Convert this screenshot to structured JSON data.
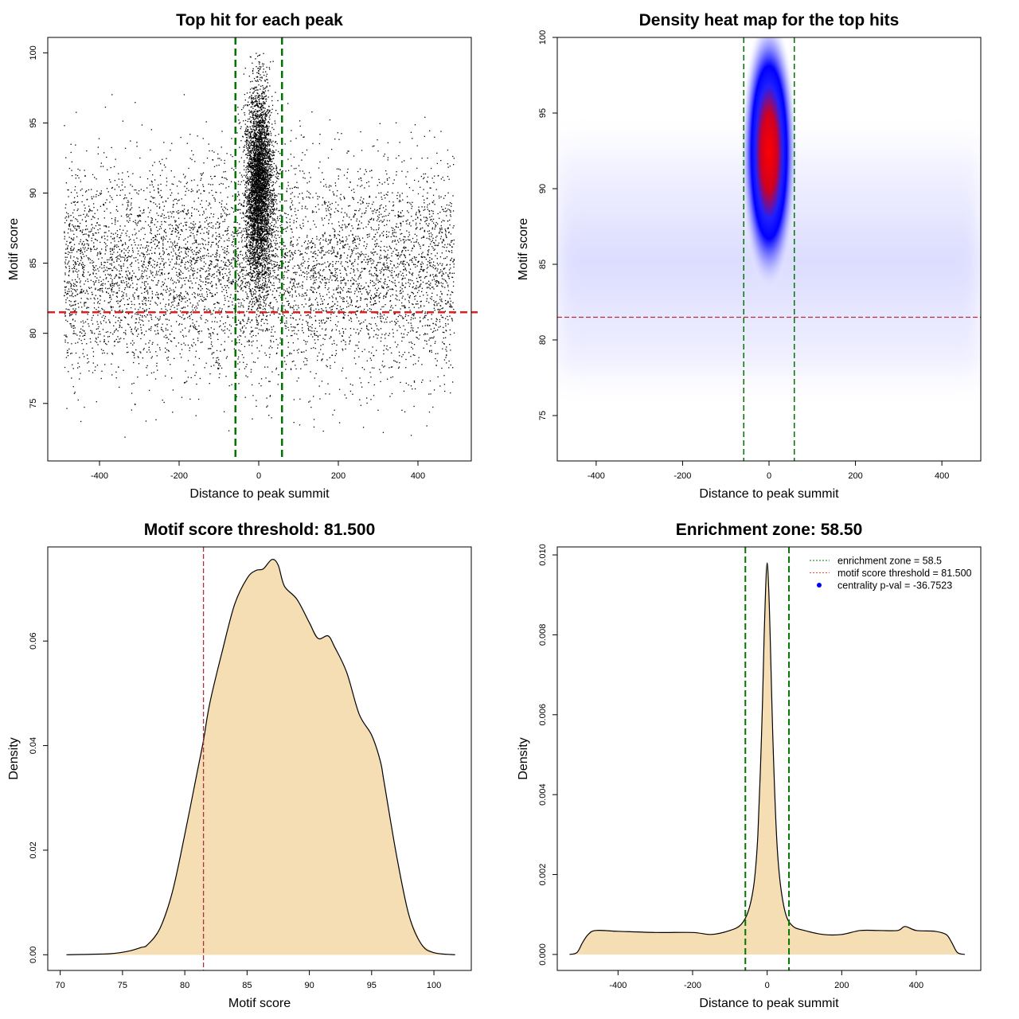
{
  "chart_data": [
    {
      "type": "scatter",
      "title": "Top hit for each peak",
      "xlabel": "Distance to peak summit",
      "ylabel": "Motif score",
      "xlim": [
        -530,
        534
      ],
      "ylim": [
        70.9,
        101.1
      ],
      "xticks": [
        -400,
        -200,
        0,
        200,
        400
      ],
      "yticks": [
        75,
        80,
        85,
        90,
        95,
        100
      ],
      "vlines": [
        -58.5,
        58.5
      ],
      "hline": 81.5,
      "colors": {
        "points": "#000000",
        "vline": "#007800",
        "hline": "#e02020"
      },
      "points_summary": {
        "background": {
          "n": 6500,
          "x_range": [
            -490,
            490
          ],
          "y_mean": 84.5,
          "y_sd": 3.8
        },
        "central": {
          "n": 4200,
          "x_mean": 0,
          "x_sd": 14,
          "y_mean": 90.5,
          "y_sd": 3.4
        }
      }
    },
    {
      "type": "heatmap",
      "title": "Density heat map for the top hits",
      "xlabel": "Distance to peak summit",
      "ylabel": "Motif score",
      "xlim": [
        -490,
        490
      ],
      "ylim": [
        72,
        100
      ],
      "xticks": [
        -400,
        -200,
        0,
        200,
        400
      ],
      "yticks": [
        75,
        80,
        85,
        90,
        95,
        100
      ],
      "vlines": [
        -58.5,
        58.5
      ],
      "hline": 81.5,
      "colors": {
        "low": "#ffffff",
        "mid": "#0000ff",
        "high": "#ff0000",
        "vline": "#007800",
        "hline": "#b03040"
      },
      "hotspot": {
        "x": 0,
        "y": 92,
        "x_spread": 25,
        "y_spread": 6
      },
      "background_band": {
        "y_center": 84.5,
        "y_spread": 4
      }
    },
    {
      "type": "area",
      "title": "Motif score threshold: 81.500",
      "xlabel": "Motif score",
      "ylabel": "Density",
      "xlim": [
        69,
        103
      ],
      "ylim": [
        -0.003,
        0.078
      ],
      "xticks": [
        70,
        75,
        80,
        85,
        90,
        95,
        100
      ],
      "yticks": [
        0.0,
        0.02,
        0.04,
        0.06
      ],
      "ytick_labels": [
        "0.00",
        "0.02",
        "0.04",
        "0.06"
      ],
      "vline": 81.5,
      "colors": {
        "fill": "#f5deb3",
        "line": "#000000",
        "vline": "#b03040"
      },
      "x": [
        70.5,
        74,
        75.5,
        76.5,
        77,
        78,
        79,
        80,
        81,
        81.5,
        82,
        83,
        84,
        85,
        85.7,
        86.3,
        87,
        87.5,
        88,
        89,
        90,
        90.7,
        91.5,
        92,
        93,
        94,
        95,
        95.7,
        96,
        97,
        98,
        99,
        100,
        101.7
      ],
      "y": [
        0,
        0.0002,
        0.0007,
        0.0014,
        0.0019,
        0.005,
        0.012,
        0.023,
        0.035,
        0.041,
        0.048,
        0.058,
        0.067,
        0.072,
        0.0735,
        0.0738,
        0.0756,
        0.0745,
        0.0705,
        0.068,
        0.0635,
        0.0605,
        0.061,
        0.059,
        0.054,
        0.046,
        0.042,
        0.037,
        0.033,
        0.019,
        0.0075,
        0.002,
        0.0004,
        0
      ]
    },
    {
      "type": "area",
      "title": "Enrichment zone: 58.50",
      "xlabel": "Distance to peak summit",
      "ylabel": "Density",
      "xlim": [
        -563,
        573
      ],
      "ylim": [
        -0.0004,
        0.0102
      ],
      "xticks": [
        -400,
        -200,
        0,
        200,
        400
      ],
      "yticks": [
        0,
        0.002,
        0.004,
        0.006,
        0.008,
        0.01
      ],
      "ytick_labels": [
        "0.000",
        "0.002",
        "0.004",
        "0.006",
        "0.008",
        "0.010"
      ],
      "vlines": [
        -58.5,
        58.5
      ],
      "colors": {
        "fill": "#f5deb3",
        "line": "#000000",
        "vline": "#007800"
      },
      "x": [
        -530,
        -510,
        -495,
        -480,
        -460,
        -400,
        -300,
        -200,
        -150,
        -100,
        -70,
        -50,
        -35,
        -25,
        -15,
        -8,
        -4,
        0,
        4,
        8,
        15,
        25,
        35,
        50,
        70,
        100,
        150,
        200,
        250,
        300,
        350,
        370,
        400,
        450,
        480,
        495,
        510,
        530
      ],
      "y": [
        0,
        5e-05,
        0.0003,
        0.0005,
        0.0006,
        0.00058,
        0.00055,
        0.00055,
        0.0005,
        0.0006,
        0.00075,
        0.0011,
        0.0018,
        0.003,
        0.0055,
        0.008,
        0.0092,
        0.0098,
        0.0092,
        0.008,
        0.0055,
        0.003,
        0.0018,
        0.001,
        0.0007,
        0.0006,
        0.0005,
        0.0005,
        0.0006,
        0.0006,
        0.0006,
        0.0007,
        0.0006,
        0.00058,
        0.0005,
        0.0003,
        5e-05,
        0
      ],
      "legend": {
        "position": "top-right",
        "entries": [
          {
            "label": "enrichment zone = 58.5",
            "style": "dotted-line",
            "color": "#007800"
          },
          {
            "label": "motif score threshold = 81.500",
            "style": "dotted-line",
            "color": "#ff4040"
          },
          {
            "label": "centrality p-val = -36.7523",
            "style": "dot",
            "color": "#0000ff"
          }
        ]
      }
    }
  ]
}
